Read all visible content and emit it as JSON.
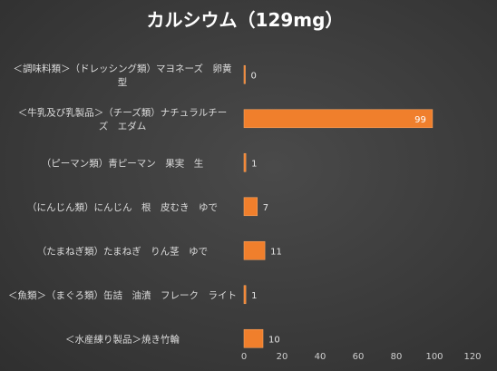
{
  "chart_data": {
    "type": "bar",
    "orientation": "horizontal",
    "title": "カルシウム（129mg）",
    "categories": [
      "＜調味料類＞（ドレッシング類）マヨネーズ　卵黄型",
      "＜牛乳及び乳製品＞（チーズ類）ナチュラルチーズ　エダム",
      "（ピーマン類）青ピーマン　果実　生",
      "（にんじん類）にんじん　根　皮むき　ゆで",
      "（たまねぎ類）たまねぎ　りん茎　ゆで",
      "＜魚類＞（まぐろ類）缶詰　油漬　フレーク　ライト",
      "＜水産練り製品＞焼き竹輪"
    ],
    "category_lines": [
      [
        "＜調味料類＞（ドレッシング類）マヨネーズ　卵黄",
        "型"
      ],
      [
        "＜牛乳及び乳製品＞（チーズ類）ナチュラルチー",
        "ズ　エダム"
      ],
      [
        "（ピーマン類）青ピーマン　果実　生"
      ],
      [
        "（にんじん類）にんじん　根　皮むき　ゆで"
      ],
      [
        "（たまねぎ類）たまねぎ　りん茎　ゆで"
      ],
      [
        "＜魚類＞（まぐろ類）缶詰　油漬　フレーク　ライト"
      ],
      [
        "＜水産練り製品＞焼き竹輪"
      ]
    ],
    "values": [
      0,
      99,
      1,
      7,
      11,
      1,
      10
    ],
    "xlim": [
      0,
      120
    ],
    "xticks": [
      0,
      20,
      40,
      60,
      80,
      100,
      120
    ],
    "xlabel": "",
    "ylabel": "",
    "grid": false,
    "legend": "none",
    "bar_color": "#f07f2c",
    "bar_edge_color": "#f7a35f",
    "background_color": "#3d3d3d"
  }
}
